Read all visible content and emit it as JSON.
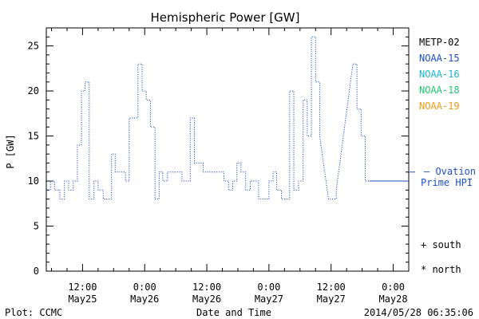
{
  "chart_data": {
    "type": "line",
    "title": "Hemispheric Power [GW]",
    "xlabel": "Date and Time",
    "ylabel": "P [GW]",
    "ylim": [
      0,
      27
    ],
    "xlim": [
      5,
      75
    ],
    "x_unit": "hours since 2014-05-25 00:00",
    "y_ticks": [
      0,
      5,
      10,
      15,
      20,
      25
    ],
    "x_ticks": [
      {
        "x": 12,
        "time": "12:00",
        "date": "May25"
      },
      {
        "x": 24,
        "time": "0:00",
        "date": "May26"
      },
      {
        "x": 36,
        "time": "12:00",
        "date": "May26"
      },
      {
        "x": 48,
        "time": "0:00",
        "date": "May27"
      },
      {
        "x": 60,
        "time": "12:00",
        "date": "May27"
      },
      {
        "x": 72,
        "time": "0:00",
        "date": "May28"
      }
    ],
    "series": [
      {
        "name": "NOAA-15",
        "color": "#1f4fc8",
        "points": [
          [
            5.0,
            9
          ],
          [
            5.8,
            9
          ],
          [
            5.8,
            10
          ],
          [
            6.6,
            10
          ],
          [
            6.6,
            9
          ],
          [
            7.6,
            9
          ],
          [
            7.6,
            8
          ],
          [
            8.5,
            8
          ],
          [
            8.5,
            10
          ],
          [
            9.3,
            10
          ],
          [
            9.3,
            9
          ],
          [
            10.2,
            9
          ],
          [
            10.2,
            10
          ],
          [
            11.0,
            10
          ],
          [
            11.0,
            14
          ],
          [
            11.8,
            14
          ],
          [
            11.8,
            20
          ],
          [
            12.5,
            20
          ],
          [
            12.5,
            21
          ],
          [
            13.3,
            21
          ],
          [
            13.3,
            8
          ],
          [
            14.2,
            8
          ],
          [
            14.2,
            10
          ],
          [
            15.0,
            10
          ],
          [
            15.0,
            9
          ],
          [
            16.0,
            9
          ],
          [
            16.0,
            8
          ],
          [
            17.6,
            8
          ],
          [
            17.6,
            13
          ],
          [
            18.3,
            13
          ],
          [
            18.3,
            11
          ],
          [
            20.3,
            11
          ],
          [
            20.3,
            10
          ],
          [
            21.0,
            10
          ],
          [
            21.0,
            17
          ],
          [
            22.7,
            17
          ],
          [
            22.7,
            23
          ],
          [
            23.5,
            23
          ],
          [
            23.5,
            20
          ],
          [
            24.3,
            20
          ],
          [
            24.3,
            19
          ],
          [
            25.1,
            19
          ],
          [
            25.1,
            16
          ],
          [
            26.0,
            16
          ],
          [
            26.0,
            8
          ],
          [
            26.8,
            8
          ],
          [
            26.8,
            11
          ],
          [
            27.5,
            11
          ],
          [
            27.5,
            10
          ],
          [
            28.4,
            10
          ],
          [
            28.4,
            11
          ],
          [
            31.2,
            11
          ],
          [
            31.2,
            10
          ],
          [
            32.8,
            10
          ],
          [
            32.8,
            17
          ],
          [
            33.6,
            17
          ],
          [
            33.6,
            12
          ],
          [
            35.3,
            12
          ],
          [
            35.3,
            11
          ],
          [
            39.3,
            11
          ],
          [
            39.3,
            10
          ],
          [
            40.2,
            10
          ],
          [
            40.2,
            9
          ],
          [
            41.0,
            9
          ],
          [
            41.0,
            10
          ],
          [
            41.8,
            10
          ],
          [
            41.8,
            12
          ],
          [
            42.6,
            12
          ],
          [
            42.6,
            11
          ],
          [
            43.5,
            11
          ],
          [
            43.5,
            9
          ],
          [
            44.4,
            9
          ],
          [
            44.4,
            10
          ],
          [
            46.0,
            10
          ],
          [
            46.0,
            8
          ],
          [
            48.0,
            8
          ],
          [
            48.0,
            10
          ],
          [
            48.8,
            10
          ],
          [
            48.8,
            11
          ],
          [
            49.5,
            11
          ],
          [
            49.5,
            9
          ],
          [
            50.4,
            9
          ],
          [
            50.4,
            8
          ],
          [
            52.0,
            8
          ],
          [
            52.0,
            20
          ],
          [
            52.8,
            20
          ],
          [
            52.8,
            9
          ],
          [
            53.7,
            9
          ],
          [
            53.7,
            10
          ],
          [
            54.6,
            10
          ],
          [
            54.6,
            19
          ],
          [
            55.4,
            19
          ],
          [
            55.4,
            15
          ],
          [
            56.2,
            15
          ],
          [
            56.2,
            26
          ],
          [
            57.0,
            26
          ],
          [
            57.0,
            21
          ],
          [
            57.8,
            21
          ],
          [
            57.8,
            15
          ],
          [
            59.5,
            8
          ],
          [
            61.0,
            8
          ],
          [
            61.0,
            9
          ],
          [
            64.2,
            23
          ],
          [
            65.0,
            23
          ],
          [
            65.0,
            18
          ],
          [
            65.8,
            18
          ],
          [
            65.8,
            15
          ],
          [
            66.6,
            15
          ],
          [
            66.6,
            10
          ],
          [
            67.4,
            10
          ]
        ]
      }
    ],
    "legend": [
      {
        "label": "METP-02",
        "color": "#000000"
      },
      {
        "label": "NOAA-15",
        "color": "#1f4fc8"
      },
      {
        "label": "NOAA-16",
        "color": "#18b4d8"
      },
      {
        "label": "NOAA-18",
        "color": "#22c870"
      },
      {
        "label": "NOAA-19",
        "color": "#f09a18"
      }
    ],
    "ovation_value": 11,
    "ovation_label_1": "— Ovation",
    "ovation_label_2": "Prime HPI",
    "ovation_color": "#1f4fc8",
    "south_label": "+ south",
    "north_label": "* north"
  },
  "footer": {
    "credit": "Plot: CCMC",
    "timestamp": "2014/05/28 06:35:06"
  }
}
